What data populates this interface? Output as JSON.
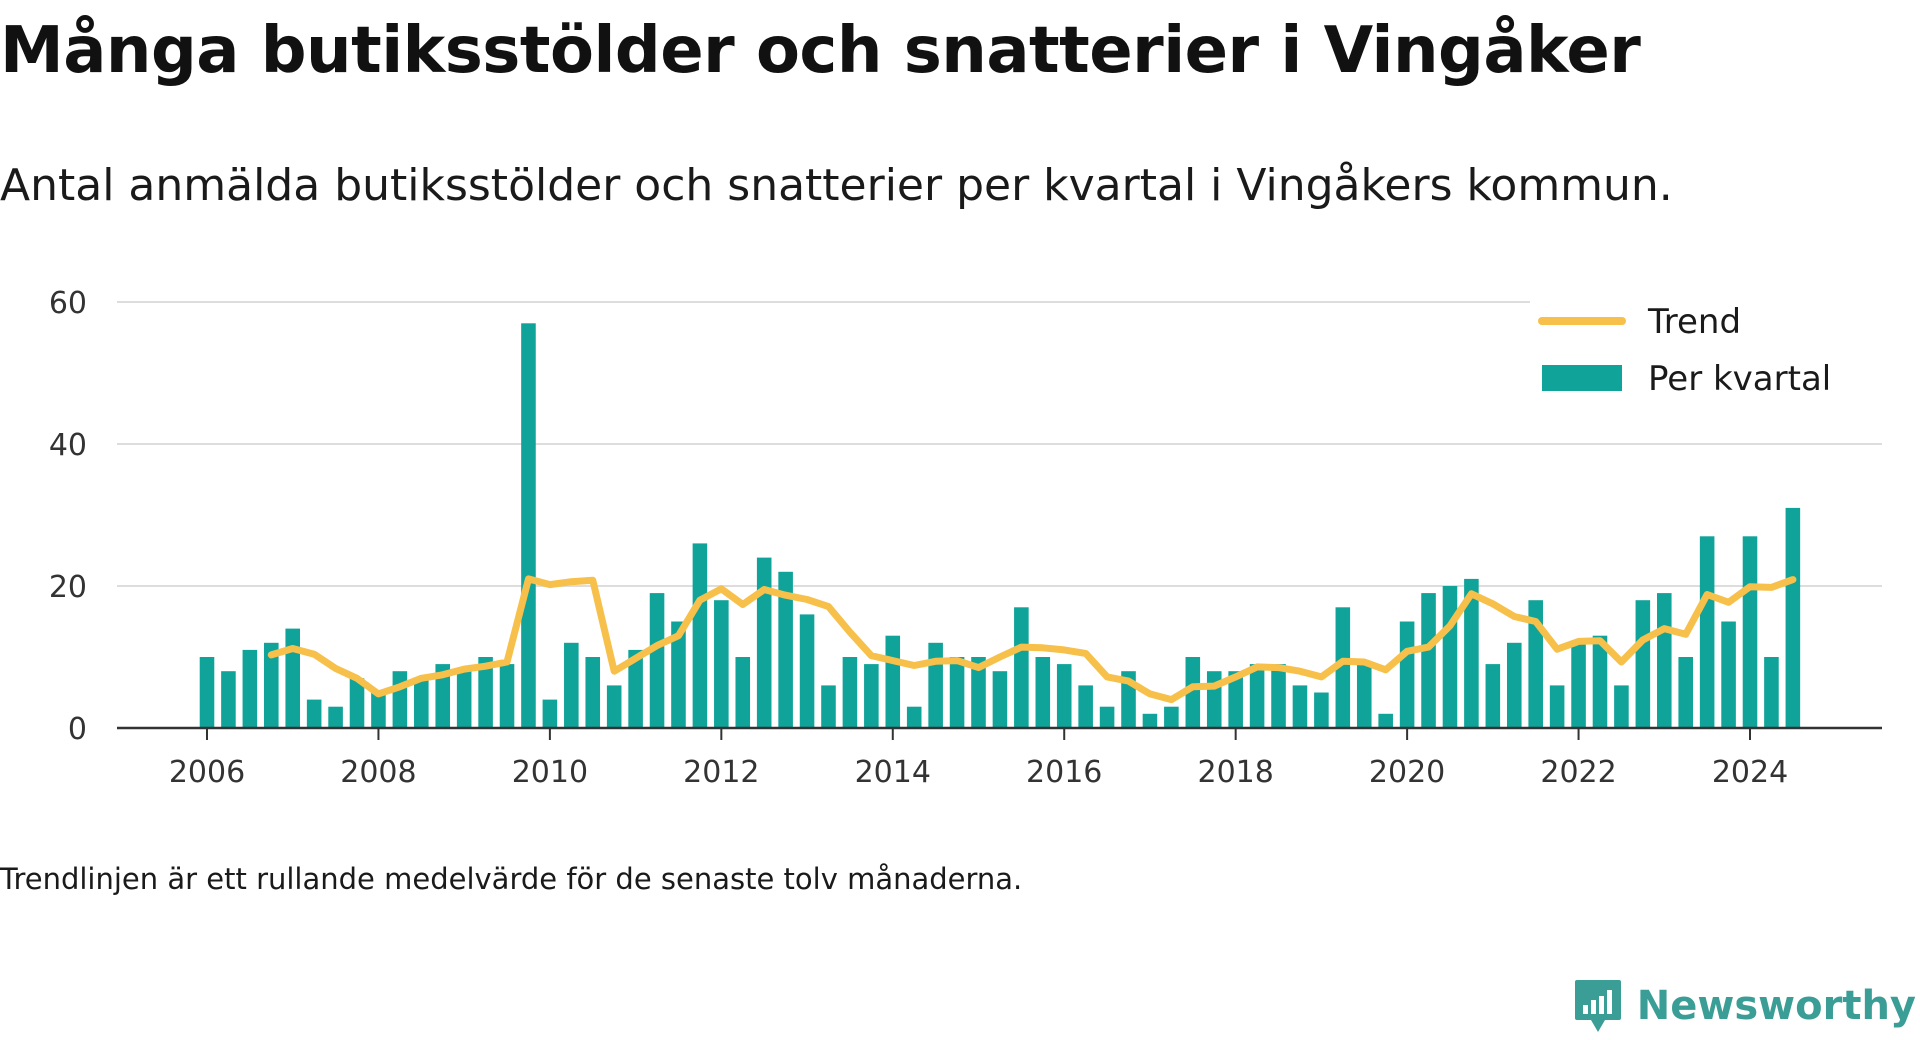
{
  "title": "Många butiksstölder och snatterier i Vingåker",
  "subtitle": "Antal anmälda butiksstölder och snatterier per kvartal i Vingåkers kommun.",
  "note": "Trendlinjen är ett rullande medelvärde för de senaste tolv månaderna.",
  "brand": {
    "name": "Newsworthy",
    "icon": "newsworthy-logo-icon",
    "color": "#3b9e96"
  },
  "chart_data": {
    "type": "bar",
    "title": "Många butiksstölder och snatterier i Vingåker",
    "ylim": [
      0,
      60
    ],
    "yticks": [
      0,
      20,
      40,
      60
    ],
    "xticks": [
      "2006",
      "2008",
      "2010",
      "2012",
      "2014",
      "2016",
      "2018",
      "2020",
      "2022",
      "2024"
    ],
    "grid": true,
    "legend_position": "top-right",
    "colors": {
      "bars": "#10a399",
      "trend": "#f7c04a",
      "grid": "#dddddd",
      "axis": "#333333"
    },
    "legend": [
      {
        "label": "Trend",
        "kind": "line"
      },
      {
        "label": "Per kvartal",
        "kind": "bar"
      }
    ],
    "series": [
      {
        "name": "Per kvartal",
        "kind": "bar",
        "x": [
          "2006Q1",
          "2006Q2",
          "2006Q3",
          "2006Q4",
          "2007Q1",
          "2007Q2",
          "2007Q3",
          "2007Q4",
          "2008Q1",
          "2008Q2",
          "2008Q3",
          "2008Q4",
          "2009Q1",
          "2009Q2",
          "2009Q3",
          "2009Q4",
          "2010Q1",
          "2010Q2",
          "2010Q3",
          "2010Q4",
          "2011Q1",
          "2011Q2",
          "2011Q3",
          "2011Q4",
          "2012Q1",
          "2012Q2",
          "2012Q3",
          "2012Q4",
          "2013Q1",
          "2013Q2",
          "2013Q3",
          "2013Q4",
          "2014Q1",
          "2014Q2",
          "2014Q3",
          "2014Q4",
          "2015Q1",
          "2015Q2",
          "2015Q3",
          "2015Q4",
          "2016Q1",
          "2016Q2",
          "2016Q3",
          "2016Q4",
          "2017Q1",
          "2017Q2",
          "2017Q3",
          "2017Q4",
          "2018Q1",
          "2018Q2",
          "2018Q3",
          "2018Q4",
          "2019Q1",
          "2019Q2",
          "2019Q3",
          "2019Q4",
          "2020Q1",
          "2020Q2",
          "2020Q3",
          "2020Q4",
          "2021Q1",
          "2021Q2",
          "2021Q3",
          "2021Q4",
          "2022Q1",
          "2022Q2",
          "2022Q3",
          "2022Q4",
          "2023Q1",
          "2023Q2",
          "2023Q3",
          "2023Q4",
          "2024Q1",
          "2024Q2",
          "2024Q3"
        ],
        "values": [
          10,
          8,
          11,
          12,
          14,
          4,
          3,
          7,
          5,
          8,
          7,
          9,
          8,
          10,
          9,
          57,
          4,
          12,
          10,
          6,
          11,
          19,
          15,
          26,
          18,
          10,
          24,
          22,
          16,
          6,
          10,
          9,
          13,
          3,
          12,
          10,
          10,
          8,
          17,
          10,
          9,
          6,
          3,
          8,
          2,
          3,
          10,
          8,
          8,
          9,
          9,
          6,
          5,
          17,
          9,
          2,
          15,
          19,
          20,
          21,
          9,
          12,
          18,
          6,
          12,
          13,
          6,
          18,
          19,
          10,
          27,
          15,
          27,
          10,
          31
        ]
      },
      {
        "name": "Trend",
        "kind": "line",
        "x": [
          "2006Q4",
          "2007Q1",
          "2007Q2",
          "2007Q3",
          "2007Q4",
          "2008Q1",
          "2008Q2",
          "2008Q3",
          "2008Q4",
          "2009Q1",
          "2009Q2",
          "2009Q3",
          "2009Q4",
          "2010Q1",
          "2010Q2",
          "2010Q3",
          "2010Q4",
          "2011Q1",
          "2011Q2",
          "2011Q3",
          "2011Q4",
          "2012Q1",
          "2012Q2",
          "2012Q3",
          "2012Q4",
          "2013Q1",
          "2013Q2",
          "2013Q3",
          "2013Q4",
          "2014Q1",
          "2014Q2",
          "2014Q3",
          "2014Q4",
          "2015Q1",
          "2015Q2",
          "2015Q3",
          "2015Q4",
          "2016Q1",
          "2016Q2",
          "2016Q3",
          "2016Q4",
          "2017Q1",
          "2017Q2",
          "2017Q3",
          "2017Q4",
          "2018Q1",
          "2018Q2",
          "2018Q3",
          "2018Q4",
          "2019Q1",
          "2019Q2",
          "2019Q3",
          "2019Q4",
          "2020Q1",
          "2020Q2",
          "2020Q3",
          "2020Q4",
          "2021Q1",
          "2021Q2",
          "2021Q3",
          "2021Q4",
          "2022Q1",
          "2022Q2",
          "2022Q3",
          "2022Q4",
          "2023Q1",
          "2023Q2",
          "2023Q3",
          "2023Q4",
          "2024Q1",
          "2024Q2",
          "2024Q3"
        ],
        "values": [
          10.3,
          11.2,
          10.4,
          8.4,
          7.0,
          4.8,
          5.8,
          7.0,
          7.5,
          8.3,
          8.7,
          9.3,
          21.0,
          20.2,
          20.6,
          20.8,
          8.0,
          9.8,
          11.6,
          13.0,
          18.0,
          19.6,
          17.4,
          19.5,
          18.7,
          18.1,
          17.1,
          13.5,
          10.2,
          9.5,
          8.8,
          9.4,
          9.5,
          8.5,
          10.0,
          11.4,
          11.3,
          11.0,
          10.5,
          7.2,
          6.6,
          4.8,
          4.0,
          5.8,
          5.9,
          7.2,
          8.6,
          8.5,
          8.0,
          7.2,
          9.4,
          9.3,
          8.2,
          10.8,
          11.4,
          14.4,
          18.9,
          17.5,
          15.7,
          15.0,
          11.1,
          12.2,
          12.3,
          9.3,
          12.4,
          14.0,
          13.2,
          18.8,
          17.7,
          19.9,
          19.8,
          20.9
        ]
      }
    ]
  }
}
